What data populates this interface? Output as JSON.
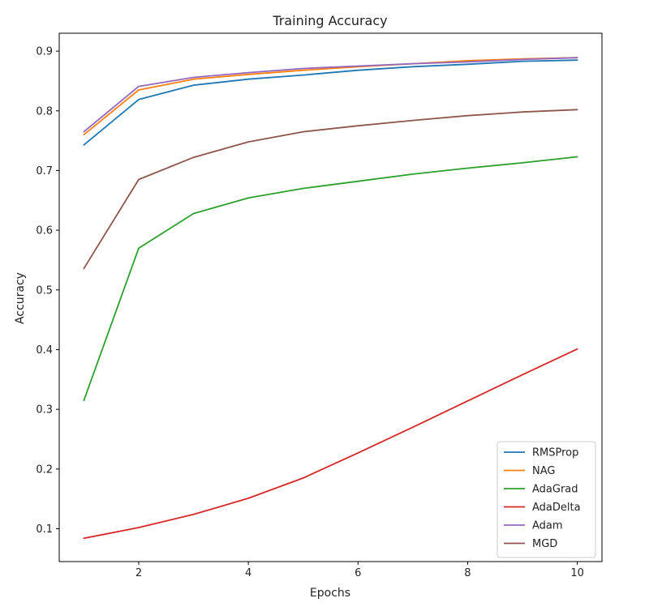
{
  "chart_data": {
    "type": "line",
    "title": "Training Accuracy",
    "xlabel": "Epochs",
    "ylabel": "Accuracy",
    "x": [
      1,
      2,
      3,
      4,
      5,
      6,
      7,
      8,
      9,
      10
    ],
    "xlim": [
      0.55,
      10.45
    ],
    "ylim": [
      0.045,
      0.93
    ],
    "xticks": [
      2,
      4,
      6,
      8,
      10
    ],
    "yticks": [
      0.1,
      0.2,
      0.3,
      0.4,
      0.5,
      0.6,
      0.7,
      0.8,
      0.9
    ],
    "grid": false,
    "legend_position": "lower-right",
    "series": [
      {
        "name": "RMSProp",
        "color": "#1f77b4",
        "values": [
          0.743,
          0.819,
          0.843,
          0.853,
          0.86,
          0.868,
          0.874,
          0.878,
          0.883,
          0.885
        ]
      },
      {
        "name": "NAG",
        "color": "#ff7f0e",
        "values": [
          0.76,
          0.835,
          0.853,
          0.861,
          0.868,
          0.874,
          0.879,
          0.884,
          0.887,
          0.889
        ]
      },
      {
        "name": "AdaGrad",
        "color": "#2ca02c",
        "values": [
          0.315,
          0.57,
          0.628,
          0.654,
          0.67,
          0.682,
          0.694,
          0.704,
          0.713,
          0.723
        ]
      },
      {
        "name": "AdaDelta",
        "color": "#d62728",
        "values": [
          0.084,
          0.102,
          0.124,
          0.151,
          0.185,
          0.227,
          0.27,
          0.314,
          0.358,
          0.401
        ]
      },
      {
        "name": "Adam",
        "color": "#9467bd",
        "values": [
          0.765,
          0.841,
          0.856,
          0.864,
          0.871,
          0.875,
          0.879,
          0.882,
          0.886,
          0.889
        ]
      },
      {
        "name": "MGD",
        "color": "#8c564b",
        "values": [
          0.536,
          0.685,
          0.722,
          0.748,
          0.765,
          0.775,
          0.784,
          0.792,
          0.798,
          0.802
        ]
      }
    ]
  }
}
